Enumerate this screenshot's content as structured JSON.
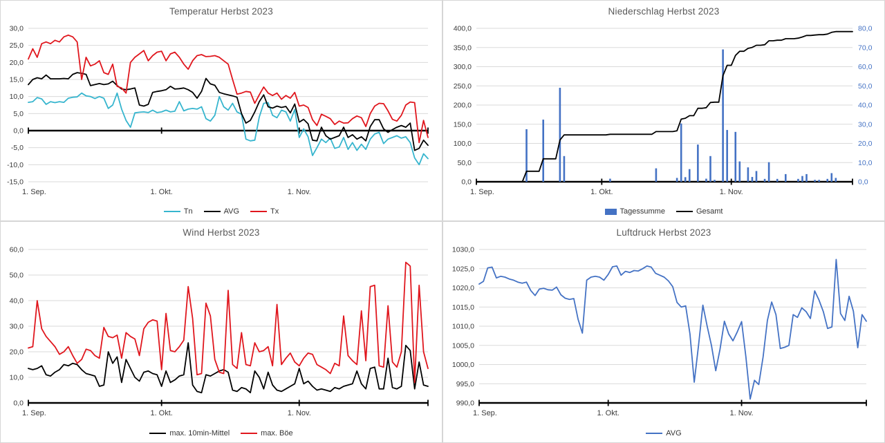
{
  "background": "#FFFFFF",
  "colors": {
    "red": "#E0161D",
    "cyan": "#36B5CE",
    "blue": "#4472C4",
    "black": "#000000",
    "grid": "#DADADA",
    "title": "#595959",
    "tick_label": "#3A3A3A"
  },
  "chart_data": [
    {
      "type": "line",
      "title": "Temperatur Herbst 2023",
      "x_axis": {
        "tick_labels": [
          "1. Sep.",
          "1. Okt.",
          "1. Nov."
        ],
        "tick_days": [
          0,
          30,
          61
        ],
        "total_days": 91
      },
      "y_axis": {
        "min": -15,
        "max": 30,
        "step": 5
      },
      "axis_cross": 0,
      "legend_position": "bottom",
      "grid": true,
      "series": [
        {
          "name": "Tn",
          "color": "#36B5CE",
          "axis": "left",
          "kind": "line",
          "values": [
            8.3,
            8.5,
            9.7,
            9.3,
            7.7,
            8.5,
            8.2,
            8.5,
            8.3,
            9.5,
            9.8,
            9.9,
            11.0,
            10.2,
            10.0,
            9.4,
            10.0,
            9.5,
            6.5,
            7.5,
            11.0,
            6.3,
            3.0,
            1.0,
            5.2,
            5.4,
            5.5,
            5.3,
            6.0,
            5.3,
            5.5,
            6.0,
            5.5,
            5.7,
            8.5,
            5.8,
            6.3,
            6.5,
            6.3,
            7.0,
            3.5,
            2.8,
            4.5,
            10.0,
            7.0,
            6.0,
            8.0,
            5.5,
            4.8,
            -2.5,
            -3.0,
            -2.8,
            4.0,
            8.0,
            8.2,
            4.5,
            3.8,
            6.0,
            5.5,
            2.8,
            6.2,
            -2.0,
            0.5,
            -1.8,
            -7.3,
            -5.0,
            -2.5,
            -3.5,
            -2.2,
            -5.2,
            -4.8,
            -2.0,
            -5.5,
            -3.5,
            -5.8,
            -4.0,
            -5.5,
            -2.5,
            -1.0,
            -0.5,
            -3.8,
            -2.5,
            -2.0,
            -1.5,
            -2.2,
            -1.8,
            -3.5,
            -8.0,
            -10.0,
            -6.8,
            -8.2
          ]
        },
        {
          "name": "AVG",
          "color": "#000000",
          "axis": "left",
          "kind": "line",
          "values": [
            13.5,
            15.0,
            15.5,
            15.2,
            16.3,
            15.2,
            15.2,
            15.2,
            15.3,
            15.2,
            16.5,
            17.0,
            16.8,
            16.5,
            13.2,
            13.5,
            13.8,
            13.5,
            13.7,
            14.5,
            13.2,
            12.2,
            12.0,
            12.2,
            12.5,
            7.5,
            7.2,
            7.7,
            11.2,
            11.5,
            11.7,
            12.0,
            13.0,
            12.2,
            12.3,
            12.5,
            12.0,
            11.2,
            9.5,
            11.5,
            15.3,
            13.7,
            13.3,
            11.2,
            10.8,
            10.5,
            10.2,
            9.8,
            5.0,
            2.2,
            3.0,
            5.5,
            8.5,
            10.5,
            7.0,
            6.6,
            7.2,
            6.8,
            7.1,
            5.2,
            7.8,
            2.5,
            3.3,
            2.0,
            -2.8,
            -3.0,
            1.0,
            -1.5,
            -2.5,
            -2.0,
            -1.5,
            1.0,
            -2.0,
            -1.2,
            -2.5,
            -1.8,
            -3.0,
            1.2,
            3.2,
            3.2,
            0.5,
            -0.5,
            0.3,
            1.0,
            1.5,
            1.0,
            2.2,
            -5.8,
            -5.2,
            -2.8,
            -4.3
          ]
        },
        {
          "name": "Tx",
          "color": "#E0161D",
          "axis": "left",
          "kind": "line",
          "values": [
            21.0,
            24.0,
            21.5,
            25.5,
            26.0,
            25.5,
            26.5,
            26.0,
            27.5,
            28.0,
            27.5,
            26.0,
            15.0,
            21.5,
            19.0,
            19.5,
            20.5,
            17.0,
            16.5,
            19.5,
            13.0,
            12.5,
            11.0,
            20.0,
            21.5,
            22.5,
            23.5,
            20.5,
            22.0,
            23.0,
            23.3,
            20.5,
            22.5,
            23.0,
            21.5,
            19.5,
            18.0,
            20.5,
            22.0,
            22.3,
            21.7,
            21.8,
            22.0,
            21.5,
            20.5,
            19.5,
            15.0,
            10.7,
            11.0,
            11.5,
            11.3,
            8.0,
            10.5,
            12.8,
            11.0,
            10.3,
            11.0,
            9.2,
            10.3,
            9.5,
            11.2,
            7.2,
            7.5,
            6.8,
            3.2,
            1.5,
            4.8,
            4.2,
            3.5,
            1.8,
            2.8,
            2.2,
            2.3,
            3.5,
            4.3,
            3.8,
            1.2,
            5.0,
            7.2,
            8.0,
            7.9,
            5.8,
            3.3,
            2.8,
            4.5,
            7.5,
            8.4,
            8.2,
            -3.5,
            3.0,
            -2.0
          ]
        }
      ]
    },
    {
      "type": "bar",
      "title": "Niederschlag Herbst 2023",
      "x_axis": {
        "tick_labels": [
          "1. Sep.",
          "1. Okt.",
          "1. Nov."
        ],
        "tick_days": [
          0,
          30,
          61
        ],
        "total_days": 91
      },
      "y_axis": {
        "min": 0,
        "max": 400,
        "step": 50
      },
      "y2_axis": {
        "min": 0,
        "max": 80,
        "step": 10,
        "label_color": "#4472C4"
      },
      "legend_position": "bottom",
      "grid": true,
      "series": [
        {
          "name": "Tagessumme",
          "color": "#4472C4",
          "axis": "right",
          "kind": "bar",
          "values": [
            0,
            0,
            0,
            0,
            0,
            0,
            0,
            0,
            0,
            0,
            0,
            0,
            27.4,
            0,
            0,
            0,
            32.4,
            0,
            0,
            0,
            49.0,
            13.4,
            0,
            0,
            0,
            0,
            0,
            0,
            0,
            0,
            0,
            0,
            1.6,
            0,
            0,
            0,
            0,
            0,
            0,
            0,
            0,
            0,
            0,
            7.0,
            0,
            0,
            0,
            0,
            2.0,
            30.4,
            2.4,
            6.6,
            0,
            19.4,
            0,
            1.6,
            13.4,
            1.0,
            0,
            69.0,
            27.0,
            0,
            26.0,
            10.6,
            0,
            7.5,
            2.5,
            5.6,
            0,
            1.5,
            10.2,
            0,
            1.5,
            0,
            4.0,
            0,
            0,
            1.5,
            3.0,
            4.0,
            0,
            1.0,
            1.0,
            0,
            1.5,
            4.5,
            2.0,
            0,
            0,
            0,
            0
          ]
        },
        {
          "name": "Gesamt",
          "color": "#000000",
          "axis": "left",
          "kind": "cumulative-line",
          "source": "Tagessumme"
        }
      ]
    },
    {
      "type": "line",
      "title": "Wind Herbst 2023",
      "x_axis": {
        "tick_labels": [
          "1. Sep.",
          "1. Okt.",
          "1. Nov."
        ],
        "tick_days": [
          0,
          30,
          61
        ],
        "total_days": 91
      },
      "y_axis": {
        "min": 0,
        "max": 60,
        "step": 10
      },
      "legend_position": "bottom",
      "grid": true,
      "series": [
        {
          "name": "max. 10min-Mittel",
          "color": "#000000",
          "axis": "left",
          "kind": "line",
          "values": [
            13.5,
            13.0,
            13.5,
            14.5,
            11.0,
            10.5,
            12.0,
            13.0,
            15.0,
            14.5,
            15.5,
            15.0,
            13.0,
            11.5,
            11.0,
            10.5,
            6.5,
            7.0,
            20.0,
            15.5,
            18.0,
            8.0,
            17.0,
            13.5,
            10.0,
            8.5,
            12.0,
            12.5,
            11.5,
            11.0,
            6.5,
            12.5,
            8.0,
            9.0,
            10.5,
            11.0,
            23.5,
            7.0,
            4.5,
            4.0,
            11.0,
            10.5,
            11.5,
            12.5,
            13.0,
            12.0,
            5.0,
            4.5,
            6.0,
            5.5,
            4.0,
            12.5,
            10.0,
            5.5,
            12.0,
            7.0,
            5.0,
            4.5,
            5.5,
            6.5,
            7.5,
            13.5,
            7.5,
            8.5,
            6.5,
            5.0,
            5.5,
            5.0,
            4.5,
            6.0,
            5.5,
            6.5,
            7.0,
            7.5,
            12.5,
            7.5,
            5.5,
            13.5,
            14.0,
            5.5,
            5.5,
            17.5,
            6.0,
            5.5,
            6.5,
            22.5,
            20.5,
            5.5,
            16.0,
            7.0,
            6.5
          ]
        },
        {
          "name": "max. Böe",
          "color": "#E0161D",
          "axis": "left",
          "kind": "line",
          "values": [
            21.5,
            22.0,
            40.0,
            29.0,
            26.0,
            24.0,
            22.0,
            19.0,
            20.0,
            22.0,
            18.5,
            15.5,
            17.0,
            21.0,
            20.5,
            18.5,
            17.5,
            29.5,
            26.0,
            25.5,
            26.5,
            17.5,
            27.5,
            26.0,
            25.0,
            18.5,
            29.0,
            31.5,
            32.5,
            32.0,
            13.0,
            35.0,
            20.5,
            20.0,
            22.0,
            24.5,
            45.5,
            33.0,
            11.0,
            11.5,
            39.0,
            34.0,
            17.0,
            12.0,
            11.5,
            44.0,
            15.0,
            13.5,
            27.5,
            15.0,
            14.5,
            23.5,
            20.0,
            20.5,
            22.0,
            14.5,
            38.5,
            15.0,
            17.5,
            19.5,
            16.0,
            14.5,
            17.5,
            19.5,
            19.0,
            15.0,
            14.0,
            13.0,
            11.5,
            15.5,
            14.5,
            34.0,
            18.5,
            16.5,
            15.0,
            36.0,
            16.5,
            45.5,
            46.0,
            14.5,
            14.0,
            38.0,
            16.0,
            14.0,
            20.0,
            55.0,
            53.5,
            8.0,
            46.0,
            20.0,
            13.5
          ]
        }
      ]
    },
    {
      "type": "line",
      "title": "Luftdruck Herbst 2023",
      "x_axis": {
        "tick_labels": [
          "1. Sep.",
          "1. Okt.",
          "1. Nov."
        ],
        "tick_days": [
          0,
          30,
          61
        ],
        "total_days": 91
      },
      "y_axis": {
        "min": 990,
        "max": 1030,
        "step": 5
      },
      "legend_position": "bottom",
      "grid": true,
      "series": [
        {
          "name": "AVG",
          "color": "#4472C4",
          "axis": "left",
          "kind": "line",
          "values": [
            1021.0,
            1021.7,
            1025.2,
            1025.4,
            1022.6,
            1023.0,
            1022.8,
            1022.3,
            1022.0,
            1021.5,
            1021.2,
            1021.5,
            1019.3,
            1018.0,
            1019.7,
            1019.9,
            1019.5,
            1019.4,
            1020.2,
            1018.2,
            1017.3,
            1017.0,
            1017.2,
            1011.8,
            1008.2,
            1022.0,
            1022.8,
            1023.0,
            1022.8,
            1022.0,
            1023.5,
            1025.5,
            1025.7,
            1023.3,
            1024.3,
            1024.0,
            1024.5,
            1024.4,
            1025.0,
            1025.7,
            1025.4,
            1023.8,
            1023.3,
            1022.8,
            1021.8,
            1020.3,
            1016.2,
            1015.0,
            1015.3,
            1008.0,
            995.4,
            1005.0,
            1015.5,
            1010.0,
            1005.0,
            998.4,
            1004.0,
            1011.3,
            1008.0,
            1006.2,
            1008.5,
            1011.2,
            1002.0,
            991.0,
            995.9,
            994.8,
            1002.0,
            1011.5,
            1016.3,
            1013.0,
            1004.2,
            1004.5,
            1005.0,
            1013.0,
            1012.3,
            1014.8,
            1013.8,
            1012.0,
            1019.2,
            1016.8,
            1013.8,
            1009.4,
            1009.8,
            1027.4,
            1013.3,
            1011.5,
            1017.8,
            1013.9,
            1004.4,
            1013.0,
            1011.3
          ]
        }
      ]
    }
  ]
}
